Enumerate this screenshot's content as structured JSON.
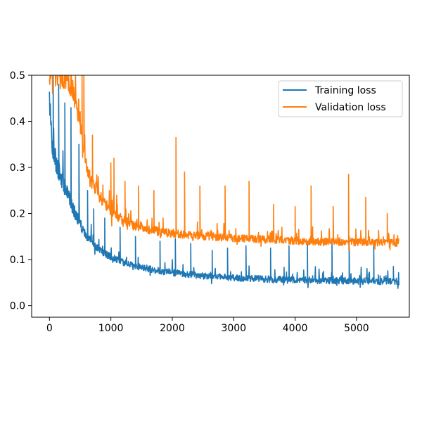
{
  "chart_data": {
    "type": "line",
    "title": "",
    "xlabel": "",
    "ylabel": "",
    "xlim": [
      -290,
      5860
    ],
    "ylim": [
      -0.025,
      0.5
    ],
    "xticks": [
      0,
      1000,
      2000,
      3000,
      4000,
      5000
    ],
    "xtick_labels": [
      "0",
      "1000",
      "2000",
      "3000",
      "4000",
      "5000"
    ],
    "yticks": [
      0.0,
      0.1,
      0.2,
      0.3,
      0.4,
      0.5
    ],
    "ytick_labels": [
      "0.0",
      "0.1",
      "0.2",
      "0.3",
      "0.4",
      "0.5"
    ],
    "grid": false,
    "legend_position": "upper right",
    "series": [
      {
        "name": "Training loss",
        "color": "#1f77b4",
        "x": [
          0,
          50,
          100,
          150,
          200,
          300,
          400,
          500,
          600,
          700,
          800,
          900,
          1000,
          1200,
          1400,
          1600,
          1800,
          2000,
          2500,
          3000,
          3500,
          4000,
          4500,
          5000,
          5500,
          5690
        ],
        "values": [
          0.45,
          0.34,
          0.31,
          0.29,
          0.27,
          0.24,
          0.205,
          0.175,
          0.15,
          0.135,
          0.122,
          0.113,
          0.105,
          0.093,
          0.085,
          0.079,
          0.075,
          0.071,
          0.064,
          0.06,
          0.057,
          0.055,
          0.054,
          0.053,
          0.052,
          0.052
        ],
        "noise_amplitude": 0.06,
        "spikes": [
          {
            "x": 60,
            "y": 0.5
          },
          {
            "x": 150,
            "y": 0.48
          },
          {
            "x": 250,
            "y": 0.44
          },
          {
            "x": 350,
            "y": 0.43
          },
          {
            "x": 480,
            "y": 0.35
          },
          {
            "x": 620,
            "y": 0.25
          },
          {
            "x": 720,
            "y": 0.21
          },
          {
            "x": 900,
            "y": 0.19
          },
          {
            "x": 1150,
            "y": 0.17
          },
          {
            "x": 1400,
            "y": 0.15
          },
          {
            "x": 1800,
            "y": 0.14
          },
          {
            "x": 2050,
            "y": 0.145
          },
          {
            "x": 2300,
            "y": 0.135
          },
          {
            "x": 2650,
            "y": 0.12
          },
          {
            "x": 2900,
            "y": 0.125
          },
          {
            "x": 3200,
            "y": 0.13
          },
          {
            "x": 3600,
            "y": 0.125
          },
          {
            "x": 3900,
            "y": 0.13
          },
          {
            "x": 4200,
            "y": 0.14
          },
          {
            "x": 4600,
            "y": 0.14
          },
          {
            "x": 4880,
            "y": 0.15
          },
          {
            "x": 5280,
            "y": 0.13
          },
          {
            "x": 5600,
            "y": 0.085
          }
        ]
      },
      {
        "name": "Validation loss",
        "color": "#ff7f0e",
        "x": [
          0,
          100,
          200,
          300,
          400,
          500,
          600,
          700,
          800,
          900,
          1000,
          1200,
          1400,
          1600,
          1800,
          2000,
          2500,
          3000,
          3500,
          4000,
          4500,
          5000,
          5500,
          5690
        ],
        "values": [
          0.5,
          0.5,
          0.5,
          0.49,
          0.46,
          0.39,
          0.3,
          0.265,
          0.24,
          0.22,
          0.205,
          0.185,
          0.172,
          0.165,
          0.16,
          0.156,
          0.15,
          0.146,
          0.143,
          0.14,
          0.138,
          0.137,
          0.136,
          0.136
        ],
        "noise_amplitude": 0.05,
        "spikes": [
          {
            "x": 530,
            "y": 0.5
          },
          {
            "x": 560,
            "y": 0.5
          },
          {
            "x": 700,
            "y": 0.37
          },
          {
            "x": 1000,
            "y": 0.31
          },
          {
            "x": 1050,
            "y": 0.32
          },
          {
            "x": 1230,
            "y": 0.27
          },
          {
            "x": 1450,
            "y": 0.26
          },
          {
            "x": 1700,
            "y": 0.25
          },
          {
            "x": 2060,
            "y": 0.365
          },
          {
            "x": 2200,
            "y": 0.29
          },
          {
            "x": 2450,
            "y": 0.26
          },
          {
            "x": 2860,
            "y": 0.26
          },
          {
            "x": 3250,
            "y": 0.27
          },
          {
            "x": 3650,
            "y": 0.22
          },
          {
            "x": 4000,
            "y": 0.215
          },
          {
            "x": 4260,
            "y": 0.26
          },
          {
            "x": 4620,
            "y": 0.215
          },
          {
            "x": 4870,
            "y": 0.285
          },
          {
            "x": 5150,
            "y": 0.235
          },
          {
            "x": 5500,
            "y": 0.2
          }
        ]
      }
    ]
  }
}
